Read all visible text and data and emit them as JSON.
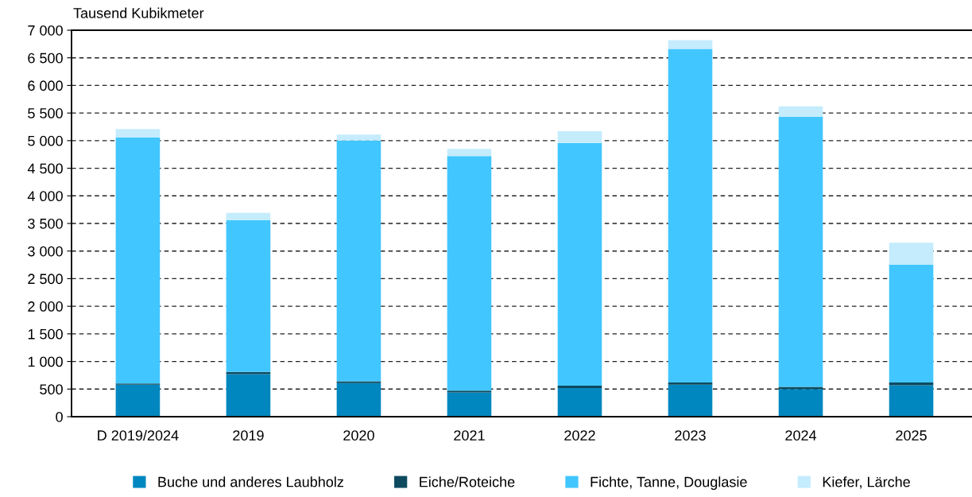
{
  "chart_data": {
    "type": "bar",
    "stacked": true,
    "ylabel": "Tausend Kubikmeter",
    "categories": [
      "D 2019/2024",
      "2019",
      "2020",
      "2021",
      "2022",
      "2023",
      "2024",
      "2025"
    ],
    "series": [
      {
        "name": "Buche und anderes Laubholz",
        "color": "#0087bf",
        "values": [
          580,
          770,
          610,
          440,
          520,
          580,
          500,
          570
        ]
      },
      {
        "name": "Eiche/Roteiche",
        "color": "#0d4a5e",
        "values": [
          20,
          40,
          30,
          30,
          40,
          40,
          40,
          50
        ]
      },
      {
        "name": "Fichte, Tanne, Douglasie",
        "color": "#42c6ff",
        "values": [
          4460,
          2750,
          4360,
          4250,
          4400,
          6040,
          4890,
          2130
        ]
      },
      {
        "name": "Kiefer, Lärche",
        "color": "#c4ecfd",
        "values": [
          150,
          130,
          110,
          130,
          210,
          160,
          190,
          400
        ]
      }
    ],
    "ylim": [
      0,
      7000
    ],
    "yticks": [
      {
        "value": 0,
        "label": "0"
      },
      {
        "value": 500,
        "label": "500"
      },
      {
        "value": 1000,
        "label": "1 000"
      },
      {
        "value": 1500,
        "label": "1 500"
      },
      {
        "value": 2000,
        "label": "2 000"
      },
      {
        "value": 2500,
        "label": "2 500"
      },
      {
        "value": 3000,
        "label": "3 000"
      },
      {
        "value": 3500,
        "label": "3 500"
      },
      {
        "value": 4000,
        "label": "4 000"
      },
      {
        "value": 4500,
        "label": "4 500"
      },
      {
        "value": 5000,
        "label": "5 000"
      },
      {
        "value": 5500,
        "label": "5 500"
      },
      {
        "value": 6000,
        "label": "6 000"
      },
      {
        "value": 6500,
        "label": "6 500"
      },
      {
        "value": 7000,
        "label": "7 000"
      }
    ],
    "grid": "y",
    "legend": "bottom"
  }
}
